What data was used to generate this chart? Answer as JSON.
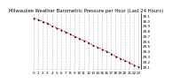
{
  "title": "Milwaukee Weather Barometric Pressure per Hour (Last 24 Hours)",
  "x_values": [
    0,
    1,
    2,
    3,
    4,
    5,
    6,
    7,
    8,
    9,
    10,
    11,
    12,
    13,
    14,
    15,
    16,
    17,
    18,
    19,
    20,
    21,
    22,
    23
  ],
  "y_values": [
    30.05,
    30.02,
    29.98,
    29.95,
    29.9,
    29.86,
    29.82,
    29.78,
    29.74,
    29.69,
    29.65,
    29.61,
    29.57,
    29.52,
    29.48,
    29.44,
    29.4,
    29.35,
    29.3,
    29.26,
    29.22,
    29.18,
    29.13,
    29.1
  ],
  "line_color": "#dd0000",
  "marker_color": "#000000",
  "background_color": "#ffffff",
  "grid_color": "#888888",
  "title_fontsize": 3.8,
  "tick_fontsize": 3.0,
  "ylim": [
    29.05,
    30.15
  ],
  "yticks": [
    29.1,
    29.2,
    29.3,
    29.4,
    29.5,
    29.6,
    29.7,
    29.8,
    29.9,
    30.0,
    30.1
  ]
}
